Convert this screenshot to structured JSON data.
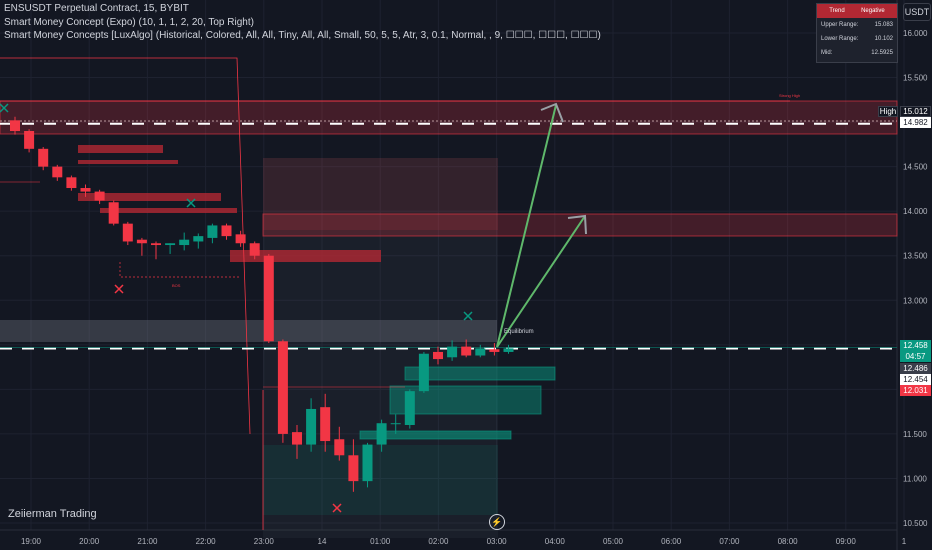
{
  "header": {
    "symbol_line": "ENSUSDT Perpetual Contract, 15, BYBIT",
    "indicator_1": "Smart Money Concept (Expo) (10, 1, 1, 2, 20, Top Right)",
    "indicator_2": "Smart Money Concepts [LuxAlgo] (Historical, Colored, All, All, Tiny, All, All, Small, 50, 5, 5, Atr, 3, 0.1, Normal, , 9, ☐☐☐, ☐☐☐, ☐☐☐)"
  },
  "watermark": "Zeiierman Trading",
  "currency_button": "USDT",
  "trend_table": {
    "col1": "Trend",
    "col2": "Negative",
    "upper_label": "Upper Range:",
    "upper_value": "15.083",
    "lower_label": "Lower Range:",
    "lower_value": "10.102",
    "mid_label": "Mid:",
    "mid_value": "12.5925"
  },
  "price_labels": {
    "high_tag": "High",
    "high_value": "15.012",
    "upper_line": "14.982",
    "current": "12.458",
    "countdown": "04:57",
    "label_a": "12.486",
    "label_b": "12.454",
    "label_c": "12.031"
  },
  "annotations": {
    "strong_high": "Strong High",
    "equilibrium": "Equilibrium",
    "bos": "BOS"
  },
  "colors": {
    "background": "#131722",
    "up": "#089981",
    "down": "#f23645",
    "grid": "#1e2230",
    "projection": "#5fb86b"
  },
  "chart_data": {
    "type": "candlestick",
    "y_axis": {
      "min": 10.5,
      "max": 16.0,
      "ticks": [
        "16.000",
        "15.500",
        "15.000",
        "14.500",
        "14.000",
        "13.500",
        "13.000",
        "12.500",
        "12.000",
        "11.500",
        "11.000",
        "10.500"
      ]
    },
    "x_axis": {
      "ticks": [
        "19:00",
        "20:00",
        "21:00",
        "22:00",
        "23:00",
        "14",
        "01:00",
        "02:00",
        "03:00",
        "04:00",
        "05:00",
        "06:00",
        "07:00",
        "08:00",
        "09:00",
        "1"
      ]
    },
    "candles": [
      {
        "o": 15.02,
        "h": 15.06,
        "l": 14.86,
        "c": 14.9
      },
      {
        "o": 14.9,
        "h": 14.92,
        "l": 14.66,
        "c": 14.7
      },
      {
        "o": 14.7,
        "h": 14.72,
        "l": 14.46,
        "c": 14.5
      },
      {
        "o": 14.5,
        "h": 14.52,
        "l": 14.34,
        "c": 14.38
      },
      {
        "o": 14.38,
        "h": 14.4,
        "l": 14.23,
        "c": 14.26
      },
      {
        "o": 14.26,
        "h": 14.3,
        "l": 14.16,
        "c": 14.22
      },
      {
        "o": 14.22,
        "h": 14.24,
        "l": 14.08,
        "c": 14.12
      },
      {
        "o": 14.1,
        "h": 14.12,
        "l": 13.84,
        "c": 13.86
      },
      {
        "o": 13.86,
        "h": 13.88,
        "l": 13.62,
        "c": 13.66
      },
      {
        "o": 13.68,
        "h": 13.7,
        "l": 13.5,
        "c": 13.64
      },
      {
        "o": 13.64,
        "h": 13.66,
        "l": 13.46,
        "c": 13.62
      },
      {
        "o": 13.62,
        "h": 13.64,
        "l": 13.52,
        "c": 13.64
      },
      {
        "o": 13.62,
        "h": 13.76,
        "l": 13.56,
        "c": 13.68
      },
      {
        "o": 13.66,
        "h": 13.75,
        "l": 13.58,
        "c": 13.72
      },
      {
        "o": 13.7,
        "h": 13.86,
        "l": 13.64,
        "c": 13.84
      },
      {
        "o": 13.84,
        "h": 13.86,
        "l": 13.68,
        "c": 13.72
      },
      {
        "o": 13.74,
        "h": 13.78,
        "l": 13.6,
        "c": 13.64
      },
      {
        "o": 13.64,
        "h": 13.66,
        "l": 13.46,
        "c": 13.5
      },
      {
        "o": 13.5,
        "h": 13.52,
        "l": 12.52,
        "c": 12.54
      },
      {
        "o": 12.54,
        "h": 12.56,
        "l": 11.4,
        "c": 11.5
      },
      {
        "o": 11.52,
        "h": 11.6,
        "l": 11.22,
        "c": 11.38
      },
      {
        "o": 11.38,
        "h": 11.9,
        "l": 11.3,
        "c": 11.78
      },
      {
        "o": 11.8,
        "h": 11.95,
        "l": 11.3,
        "c": 11.42
      },
      {
        "o": 11.44,
        "h": 11.58,
        "l": 11.2,
        "c": 11.26
      },
      {
        "o": 11.26,
        "h": 11.44,
        "l": 10.85,
        "c": 10.97
      },
      {
        "o": 10.97,
        "h": 11.4,
        "l": 10.9,
        "c": 11.38
      },
      {
        "o": 11.38,
        "h": 11.66,
        "l": 11.3,
        "c": 11.62
      },
      {
        "o": 11.62,
        "h": 11.72,
        "l": 11.5,
        "c": 11.62
      },
      {
        "o": 11.6,
        "h": 12.0,
        "l": 11.56,
        "c": 11.98
      },
      {
        "o": 11.98,
        "h": 12.42,
        "l": 11.96,
        "c": 12.4
      },
      {
        "o": 12.42,
        "h": 12.48,
        "l": 12.28,
        "c": 12.34
      },
      {
        "o": 12.36,
        "h": 12.55,
        "l": 12.32,
        "c": 12.48
      },
      {
        "o": 12.48,
        "h": 12.56,
        "l": 12.36,
        "c": 12.38
      },
      {
        "o": 12.38,
        "h": 12.5,
        "l": 12.36,
        "c": 12.46
      },
      {
        "o": 12.45,
        "h": 12.52,
        "l": 12.38,
        "c": 12.42
      },
      {
        "o": 12.42,
        "h": 12.5,
        "l": 12.4,
        "c": 12.46
      }
    ],
    "levels": {
      "high": 15.012,
      "upper": 14.982,
      "current": 12.458
    }
  }
}
